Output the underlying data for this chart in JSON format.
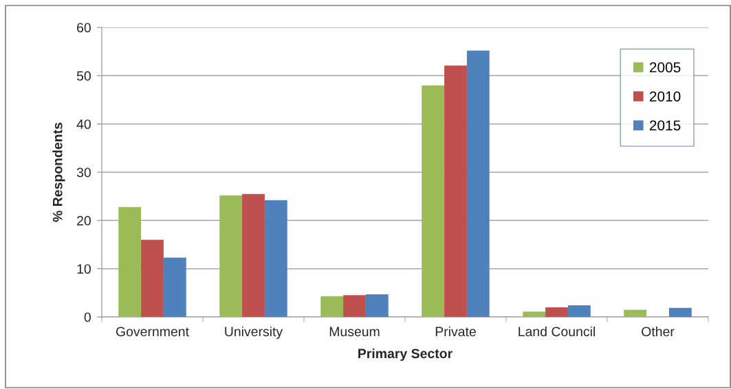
{
  "chart_data": {
    "type": "bar",
    "xlabel": "Primary Sector",
    "ylabel": "% Respondents",
    "categories": [
      "Government",
      "University",
      "Museum",
      "Private",
      "Land Council",
      "Other"
    ],
    "series": [
      {
        "name": "2005",
        "color": "#9bbb59",
        "values": [
          22.8,
          25.2,
          4.3,
          48.0,
          1.1,
          1.5
        ]
      },
      {
        "name": "2010",
        "color": "#c0504d",
        "values": [
          16.0,
          25.5,
          4.5,
          52.1,
          2.0,
          null
        ]
      },
      {
        "name": "2015",
        "color": "#4f81bd",
        "values": [
          12.3,
          24.2,
          4.7,
          55.2,
          2.4,
          1.9
        ]
      }
    ],
    "ylim": [
      0,
      60
    ],
    "yticks": [
      0,
      10,
      20,
      30,
      40,
      50,
      60
    ],
    "grid": "y",
    "legend": "top right"
  }
}
